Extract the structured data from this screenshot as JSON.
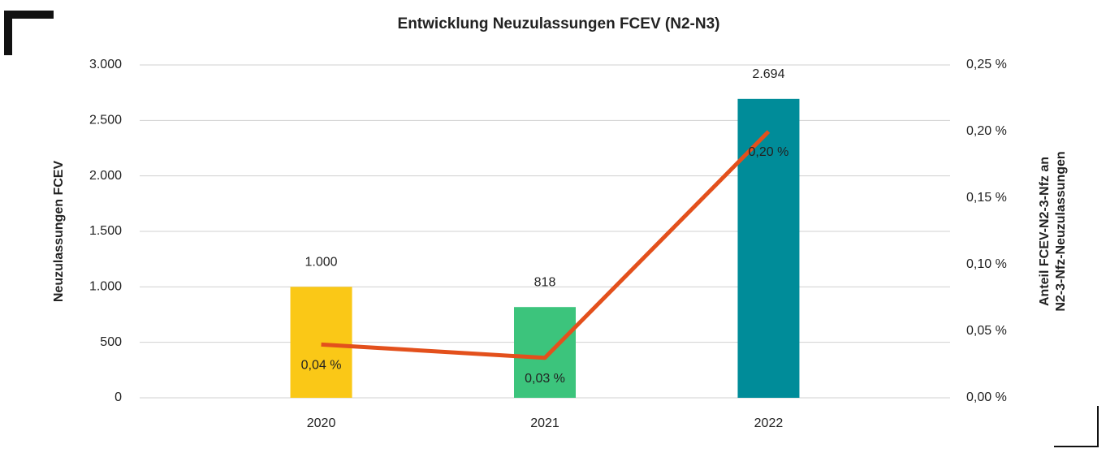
{
  "chart_data": {
    "type": "bar",
    "title": "Entwicklung Neuzulassungen FCEV (N2-N3)",
    "ylabel": "Neuzulassungen FCEV",
    "y2label": [
      "Anteil FCEV-N2-3-Nfz an",
      "N2-3-Nfz-Neuzulassungen"
    ],
    "categories": [
      "2020",
      "2021",
      "2022"
    ],
    "series": [
      {
        "type": "bar",
        "colors": [
          "#fac817",
          "#3cc47c",
          "#008c99"
        ],
        "values": [
          1000,
          818,
          2694
        ],
        "value_labels": [
          "1.000",
          "818",
          "2.694"
        ]
      },
      {
        "type": "line",
        "axis": "y2",
        "color": "#e3501c",
        "values": [
          0.04,
          0.03,
          0.2
        ],
        "value_labels": [
          "0,04 %",
          "0,03 %",
          "0,20 %"
        ]
      }
    ],
    "ylim": [
      0,
      3000
    ],
    "yticks": [
      0,
      500,
      {
        "value": 1000,
        "label": "1.000"
      },
      {
        "value": 1500,
        "label": "1.500"
      },
      {
        "value": 2000,
        "label": "2.000"
      },
      {
        "value": 2500,
        "label": "2.500"
      },
      {
        "value": 3000,
        "label": "3.000"
      }
    ],
    "y2lim": [
      0,
      0.25
    ],
    "y2ticks": [
      {
        "value": 0,
        "label": "0,00 %"
      },
      {
        "value": 0.05,
        "label": "0,05 %"
      },
      {
        "value": 0.1,
        "label": "0,10 %"
      },
      {
        "value": 0.15,
        "label": "0,15 %"
      },
      {
        "value": 0.2,
        "label": "0,20 %"
      },
      {
        "value": 0.25,
        "label": "0,25 %"
      }
    ],
    "grid": true
  }
}
